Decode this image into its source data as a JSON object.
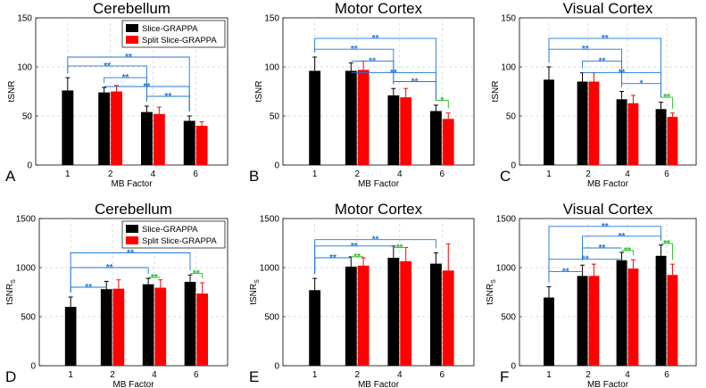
{
  "colors": {
    "black_bar": "#000000",
    "red_bar": "#ff0000",
    "sig_blue": "#1f77d4",
    "sig_green": "#22c022",
    "grid": "#d0d0d0"
  },
  "legend": [
    "Slice-GRAPPA",
    "Split Slice-GRAPPA"
  ],
  "chart_data": [
    {
      "type": "bar",
      "panel": "A",
      "title": "Cerebellum",
      "xlabel": "MB Factor",
      "ylabel": "tSNR",
      "categories": [
        "1",
        "2",
        "4",
        "6"
      ],
      "ylim": [
        0,
        150
      ],
      "yticks": [
        "0",
        "50",
        "100",
        "150"
      ],
      "series": [
        {
          "name": "Slice-GRAPPA",
          "values": [
            76,
            74,
            54,
            45
          ],
          "err": [
            13,
            5,
            6,
            5
          ]
        },
        {
          "name": "Split Slice-GRAPPA",
          "values": [
            null,
            75,
            52,
            40
          ],
          "err": [
            null,
            6,
            7,
            4
          ]
        }
      ],
      "legend": true,
      "significance": [
        {
          "from": [
            0,
            0
          ],
          "to": [
            3,
            0
          ],
          "y": 110,
          "color": "blue",
          "label": "**"
        },
        {
          "from": [
            0,
            0
          ],
          "to": [
            2,
            0
          ],
          "y": 101,
          "color": "blue",
          "label": "**"
        },
        {
          "from": [
            1,
            0
          ],
          "to": [
            2,
            0
          ],
          "y": 89,
          "color": "blue",
          "label": "**"
        },
        {
          "from": [
            2,
            0
          ],
          "to": [
            3,
            0
          ],
          "y": 70,
          "color": "blue",
          "label": "**"
        },
        {
          "from": [
            1,
            0
          ],
          "to": [
            3,
            0
          ],
          "y": 80,
          "color": "blue",
          "label": "**"
        }
      ]
    },
    {
      "type": "bar",
      "panel": "B",
      "title": "Motor Cortex",
      "xlabel": "MB Factor",
      "ylabel": "tSNR",
      "categories": [
        "1",
        "2",
        "4",
        "6"
      ],
      "ylim": [
        0,
        150
      ],
      "yticks": [
        "0",
        "50",
        "100",
        "150"
      ],
      "series": [
        {
          "name": "Slice-GRAPPA",
          "values": [
            96,
            96,
            71,
            55
          ],
          "err": [
            14,
            8,
            7,
            6
          ]
        },
        {
          "name": "Split Slice-GRAPPA",
          "values": [
            null,
            97,
            69,
            47
          ],
          "err": [
            null,
            9,
            9,
            6
          ]
        }
      ],
      "legend": false,
      "significance": [
        {
          "from": [
            0,
            0
          ],
          "to": [
            3,
            0
          ],
          "y": 129,
          "color": "blue",
          "label": "**"
        },
        {
          "from": [
            0,
            0
          ],
          "to": [
            2,
            0
          ],
          "y": 118,
          "color": "blue",
          "label": "**"
        },
        {
          "from": [
            1,
            0
          ],
          "to": [
            2,
            0
          ],
          "y": 106,
          "color": "blue",
          "label": "**"
        },
        {
          "from": [
            1,
            0
          ],
          "to": [
            3,
            0
          ],
          "y": 94,
          "color": "blue",
          "label": "**"
        },
        {
          "from": [
            2,
            0
          ],
          "to": [
            3,
            0
          ],
          "y": 85,
          "color": "blue",
          "label": "**"
        },
        {
          "from": [
            3,
            0
          ],
          "to": [
            3,
            1
          ],
          "y": 66,
          "color": "green",
          "label": "*"
        }
      ]
    },
    {
      "type": "bar",
      "panel": "C",
      "title": "Visual Cortex",
      "xlabel": "MB Factor",
      "ylabel": "tSNR",
      "categories": [
        "1",
        "2",
        "4",
        "6"
      ],
      "ylim": [
        0,
        150
      ],
      "yticks": [
        "0",
        "50",
        "100",
        "150"
      ],
      "series": [
        {
          "name": "Slice-GRAPPA",
          "values": [
            87,
            85,
            67,
            57
          ],
          "err": [
            13,
            9,
            8,
            7
          ]
        },
        {
          "name": "Split Slice-GRAPPA",
          "values": [
            null,
            85,
            63,
            49
          ],
          "err": [
            null,
            9,
            8,
            4
          ]
        }
      ],
      "legend": false,
      "significance": [
        {
          "from": [
            0,
            0
          ],
          "to": [
            3,
            0
          ],
          "y": 129,
          "color": "blue",
          "label": "**"
        },
        {
          "from": [
            0,
            0
          ],
          "to": [
            2,
            0
          ],
          "y": 118,
          "color": "blue",
          "label": "**"
        },
        {
          "from": [
            1,
            0
          ],
          "to": [
            2,
            0
          ],
          "y": 106,
          "color": "blue",
          "label": "**"
        },
        {
          "from": [
            1,
            0
          ],
          "to": [
            3,
            0
          ],
          "y": 94,
          "color": "blue",
          "label": "**"
        },
        {
          "from": [
            2,
            0
          ],
          "to": [
            3,
            0
          ],
          "y": 83,
          "color": "blue",
          "label": "*"
        },
        {
          "from": [
            3,
            0
          ],
          "to": [
            3,
            1
          ],
          "y": 69,
          "color": "green",
          "label": "**"
        }
      ]
    },
    {
      "type": "bar",
      "panel": "D",
      "title": "Cerebellum",
      "xlabel": "MB Factor",
      "ylabel": "tSNRS",
      "categories": [
        "1",
        "2",
        "4",
        "6"
      ],
      "ylim": [
        0,
        1500
      ],
      "yticks": [
        "0",
        "500",
        "1000",
        "1500"
      ],
      "series": [
        {
          "name": "Slice-GRAPPA",
          "values": [
            600,
            780,
            830,
            855
          ],
          "err": [
            100,
            80,
            60,
            70
          ]
        },
        {
          "name": "Split Slice-GRAPPA",
          "values": [
            null,
            785,
            795,
            735
          ],
          "err": [
            null,
            90,
            80,
            110
          ]
        }
      ],
      "legend": true,
      "significance": [
        {
          "from": [
            0,
            0
          ],
          "to": [
            3,
            0
          ],
          "y": 1150,
          "color": "blue",
          "label": "**"
        },
        {
          "from": [
            0,
            0
          ],
          "to": [
            2,
            0
          ],
          "y": 1000,
          "color": "blue",
          "label": "**"
        },
        {
          "from": [
            0,
            0
          ],
          "to": [
            1,
            0
          ],
          "y": 800,
          "color": "blue",
          "label": "**"
        },
        {
          "from": [
            2,
            0
          ],
          "to": [
            2,
            1
          ],
          "y": 900,
          "color": "green",
          "label": "**"
        },
        {
          "from": [
            3,
            0
          ],
          "to": [
            3,
            1
          ],
          "y": 940,
          "color": "green",
          "label": "**"
        }
      ]
    },
    {
      "type": "bar",
      "panel": "E",
      "title": "Motor Cortex",
      "xlabel": "MB Factor",
      "ylabel": "tSNRS",
      "categories": [
        "1",
        "2",
        "4",
        "6"
      ],
      "ylim": [
        0,
        1500
      ],
      "yticks": [
        "0",
        "500",
        "1000",
        "1500"
      ],
      "series": [
        {
          "name": "Slice-GRAPPA",
          "values": [
            770,
            1010,
            1100,
            1040
          ],
          "err": [
            120,
            100,
            120,
            110
          ]
        },
        {
          "name": "Split Slice-GRAPPA",
          "values": [
            null,
            1020,
            1065,
            970
          ],
          "err": [
            null,
            80,
            140,
            270
          ]
        }
      ],
      "legend": false,
      "significance": [
        {
          "from": [
            0,
            0
          ],
          "to": [
            3,
            0
          ],
          "y": 1285,
          "color": "blue",
          "label": "**"
        },
        {
          "from": [
            0,
            0
          ],
          "to": [
            2,
            0
          ],
          "y": 1220,
          "color": "blue",
          "label": "**"
        },
        {
          "from": [
            0,
            0
          ],
          "to": [
            1,
            0
          ],
          "y": 1100,
          "color": "blue",
          "label": "**"
        },
        {
          "from": [
            1,
            0
          ],
          "to": [
            1,
            1
          ],
          "y": 1110,
          "color": "green",
          "label": "**"
        },
        {
          "from": [
            2,
            0
          ],
          "to": [
            2,
            1
          ],
          "y": 1205,
          "color": "green",
          "label": "**"
        }
      ]
    },
    {
      "type": "bar",
      "panel": "F",
      "title": "Visual Cortex",
      "xlabel": "MB Factor",
      "ylabel": "tSNRS",
      "categories": [
        "1",
        "2",
        "4",
        "6"
      ],
      "ylim": [
        0,
        1500
      ],
      "yticks": [
        "0",
        "500",
        "1000",
        "1500"
      ],
      "series": [
        {
          "name": "Slice-GRAPPA",
          "values": [
            695,
            915,
            1075,
            1120
          ],
          "err": [
            110,
            110,
            80,
            110
          ]
        },
        {
          "name": "Split Slice-GRAPPA",
          "values": [
            null,
            915,
            990,
            925
          ],
          "err": [
            null,
            120,
            90,
            110
          ]
        }
      ],
      "legend": false,
      "significance": [
        {
          "from": [
            0,
            0
          ],
          "to": [
            3,
            0
          ],
          "y": 1420,
          "color": "blue",
          "label": "**"
        },
        {
          "from": [
            1,
            0
          ],
          "to": [
            3,
            0
          ],
          "y": 1320,
          "color": "blue",
          "label": "**"
        },
        {
          "from": [
            1,
            0
          ],
          "to": [
            2,
            0
          ],
          "y": 1200,
          "color": "blue",
          "label": "**"
        },
        {
          "from": [
            0,
            0
          ],
          "to": [
            2,
            0
          ],
          "y": 1085,
          "color": "blue",
          "label": "**"
        },
        {
          "from": [
            0,
            0
          ],
          "to": [
            1,
            0
          ],
          "y": 960,
          "color": "blue",
          "label": "**"
        },
        {
          "from": [
            2,
            0
          ],
          "to": [
            2,
            1
          ],
          "y": 1175,
          "color": "green",
          "label": "**"
        },
        {
          "from": [
            3,
            0
          ],
          "to": [
            3,
            1
          ],
          "y": 1245,
          "color": "green",
          "label": "**"
        }
      ]
    }
  ]
}
